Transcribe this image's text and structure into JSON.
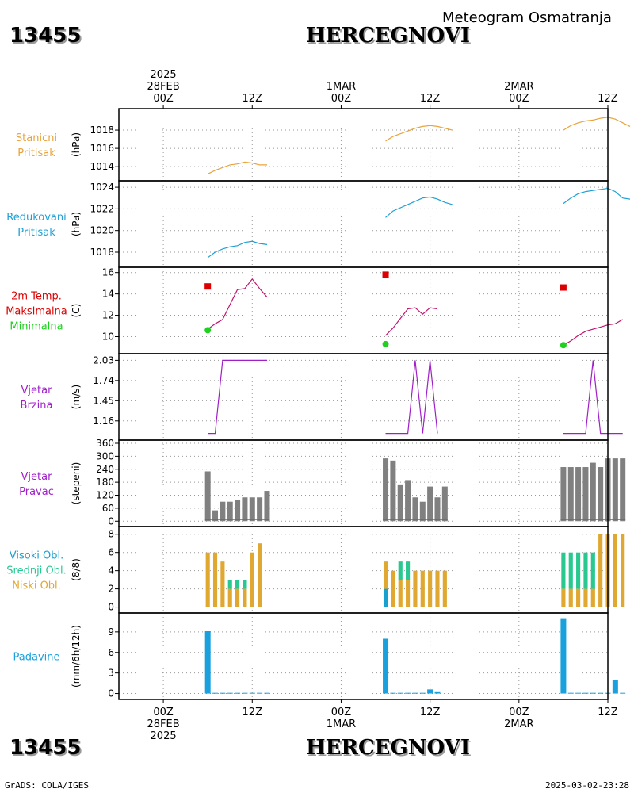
{
  "header": {
    "station_id": "13455",
    "station_name": "HERCEGNOVI",
    "meteogram_title": "Meteogram Osmatranja"
  },
  "footer": {
    "credit": "GrADS: COLA/IGES",
    "timestamp": "2025-03-02-23:28"
  },
  "time_axis": {
    "range_hours": [
      -6,
      60
    ],
    "top_labels": [
      {
        "hour": 0,
        "lines": [
          "2025",
          "28FEB",
          "00Z"
        ]
      },
      {
        "hour": 12,
        "lines": [
          "12Z"
        ]
      },
      {
        "hour": 24,
        "lines": [
          "1MAR",
          "00Z"
        ]
      },
      {
        "hour": 36,
        "lines": [
          "12Z"
        ]
      },
      {
        "hour": 48,
        "lines": [
          "2MAR",
          "00Z"
        ]
      },
      {
        "hour": 60,
        "lines": [
          "12Z"
        ]
      }
    ],
    "bottom_labels": [
      {
        "hour": 0,
        "lines": [
          "00Z",
          "28FEB",
          "2025"
        ]
      },
      {
        "hour": 12,
        "lines": [
          "12Z"
        ]
      },
      {
        "hour": 24,
        "lines": [
          "00Z",
          "1MAR"
        ]
      },
      {
        "hour": 36,
        "lines": [
          "12Z"
        ]
      },
      {
        "hour": 48,
        "lines": [
          "00Z",
          "2MAR"
        ]
      },
      {
        "hour": 60,
        "lines": [
          "12Z"
        ]
      }
    ]
  },
  "colors": {
    "pressure": "#e8a33a",
    "reduced": "#1ea0d6",
    "tmax": "#dc0000",
    "tmin": "#20d020",
    "temp_line": "#c0146e",
    "wind": "#a020c8",
    "direction_bar": "#808080",
    "direction_baseline": "#c84040",
    "cloud_high": "#18a0d0",
    "cloud_mid": "#28c890",
    "cloud_low": "#e0a830",
    "precip": "#1aa0dc"
  },
  "chart_data": [
    {
      "type": "line",
      "name_lines": [
        "Stanicni",
        "Pritisak"
      ],
      "ylabel": "(hPa)",
      "ylim": [
        1012.8,
        1020.0
      ],
      "yticks": [
        "1014",
        "1016",
        "1018"
      ],
      "series": [
        {
          "segments": [
            [
              [
                6,
                1013.2
              ],
              [
                7,
                1013.6
              ],
              [
                8,
                1013.9
              ],
              [
                9,
                1014.2
              ],
              [
                10,
                1014.3
              ],
              [
                11,
                1014.5
              ],
              [
                12,
                1014.4
              ],
              [
                13,
                1014.2
              ],
              [
                14,
                1014.2
              ]
            ],
            [
              [
                30,
                1016.8
              ],
              [
                31,
                1017.3
              ],
              [
                32,
                1017.6
              ],
              [
                33,
                1017.9
              ],
              [
                34,
                1018.2
              ],
              [
                35,
                1018.4
              ],
              [
                36,
                1018.5
              ],
              [
                37,
                1018.4
              ],
              [
                38,
                1018.2
              ],
              [
                39,
                1018.0
              ]
            ],
            [
              [
                54,
                1018.0
              ],
              [
                55,
                1018.5
              ],
              [
                56,
                1018.8
              ],
              [
                57,
                1019.0
              ],
              [
                58,
                1019.1
              ],
              [
                59,
                1019.3
              ],
              [
                60,
                1019.4
              ],
              [
                61,
                1019.2
              ],
              [
                62,
                1018.8
              ],
              [
                63,
                1018.4
              ]
            ]
          ]
        }
      ]
    },
    {
      "type": "line",
      "name_lines": [
        "Redukovani",
        "Pritisak"
      ],
      "ylabel": "(hPa)",
      "ylim": [
        1016.9,
        1024.3
      ],
      "yticks": [
        "1018",
        "1020",
        "1022",
        "1024"
      ],
      "series": [
        {
          "segments": [
            [
              [
                6,
                1017.5
              ],
              [
                7,
                1018.0
              ],
              [
                8,
                1018.3
              ],
              [
                9,
                1018.5
              ],
              [
                10,
                1018.6
              ],
              [
                11,
                1018.9
              ],
              [
                12,
                1019.0
              ],
              [
                13,
                1018.8
              ],
              [
                14,
                1018.7
              ]
            ],
            [
              [
                30,
                1021.2
              ],
              [
                31,
                1021.8
              ],
              [
                32,
                1022.1
              ],
              [
                33,
                1022.4
              ],
              [
                34,
                1022.7
              ],
              [
                35,
                1023.0
              ],
              [
                36,
                1023.1
              ],
              [
                37,
                1022.9
              ],
              [
                38,
                1022.6
              ],
              [
                39,
                1022.4
              ]
            ],
            [
              [
                54,
                1022.5
              ],
              [
                55,
                1023.0
              ],
              [
                56,
                1023.4
              ],
              [
                57,
                1023.6
              ],
              [
                58,
                1023.7
              ],
              [
                59,
                1023.8
              ],
              [
                60,
                1023.9
              ],
              [
                61,
                1023.6
              ],
              [
                62,
                1023.0
              ],
              [
                63,
                1022.9
              ]
            ]
          ]
        }
      ]
    },
    {
      "type": "line",
      "name_lines": [
        "2m Temp.",
        "Maksimalna",
        "Minimalna"
      ],
      "ylabel": "(C)",
      "ylim": [
        8.7,
        16.2
      ],
      "yticks": [
        "10",
        "12",
        "14",
        "16"
      ],
      "series": [
        {
          "segments": [
            [
              [
                6,
                10.7
              ],
              [
                7,
                11.2
              ],
              [
                8,
                11.6
              ],
              [
                9,
                13.0
              ],
              [
                10,
                14.4
              ],
              [
                11,
                14.5
              ],
              [
                12,
                15.4
              ],
              [
                13,
                14.5
              ],
              [
                14,
                13.7
              ]
            ],
            [
              [
                30,
                10.1
              ],
              [
                31,
                10.8
              ],
              [
                32,
                11.7
              ],
              [
                33,
                12.6
              ],
              [
                34,
                12.7
              ],
              [
                35,
                12.1
              ],
              [
                36,
                12.7
              ],
              [
                37,
                12.6
              ]
            ],
            [
              [
                54,
                9.2
              ],
              [
                55,
                9.6
              ],
              [
                56,
                10.1
              ],
              [
                57,
                10.5
              ],
              [
                58,
                10.7
              ],
              [
                59,
                10.9
              ],
              [
                60,
                11.1
              ],
              [
                61,
                11.2
              ],
              [
                62,
                11.6
              ]
            ]
          ]
        }
      ],
      "maxima": [
        [
          6,
          14.7
        ],
        [
          30,
          15.8
        ],
        [
          54,
          14.6
        ]
      ],
      "minima": [
        [
          6,
          10.6
        ],
        [
          30,
          9.3
        ],
        [
          54,
          9.2
        ]
      ]
    },
    {
      "type": "line",
      "name_lines": [
        "Vjetar",
        "Brzina"
      ],
      "ylabel": "(m/s)",
      "ylim": [
        0.93,
        2.08
      ],
      "yticks": [
        "1.16",
        "1.45",
        "1.74",
        "2.03"
      ],
      "series": [
        {
          "segments": [
            [
              [
                6,
                0.98
              ],
              [
                7,
                0.98
              ],
              [
                8,
                2.03
              ],
              [
                9,
                2.03
              ],
              [
                10,
                2.03
              ],
              [
                11,
                2.03
              ],
              [
                12,
                2.03
              ],
              [
                13,
                2.03
              ],
              [
                14,
                2.03
              ]
            ],
            [
              [
                30,
                0.98
              ],
              [
                31,
                0.98
              ],
              [
                32,
                0.98
              ],
              [
                33,
                0.98
              ],
              [
                34,
                2.03
              ],
              [
                35,
                0.98
              ],
              [
                36,
                2.03
              ],
              [
                37,
                0.98
              ]
            ],
            [
              [
                54,
                0.98
              ],
              [
                55,
                0.98
              ],
              [
                56,
                0.98
              ],
              [
                57,
                0.98
              ],
              [
                58,
                2.03
              ],
              [
                59,
                0.98
              ],
              [
                60,
                0.98
              ],
              [
                61,
                0.98
              ],
              [
                62,
                0.98
              ]
            ]
          ]
        }
      ]
    },
    {
      "type": "bar",
      "name_lines": [
        "Vjetar",
        "Pravac"
      ],
      "ylabel": "(stepeni)",
      "ylim": [
        -10,
        360
      ],
      "yticks": [
        "0",
        "60",
        "120",
        "180",
        "240",
        "300",
        "360"
      ],
      "bars": [
        [
          6,
          230
        ],
        [
          7,
          50
        ],
        [
          8,
          90
        ],
        [
          9,
          90
        ],
        [
          10,
          100
        ],
        [
          11,
          110
        ],
        [
          12,
          110
        ],
        [
          13,
          110
        ],
        [
          14,
          140
        ],
        [
          30,
          290
        ],
        [
          31,
          280
        ],
        [
          32,
          170
        ],
        [
          33,
          190
        ],
        [
          34,
          110
        ],
        [
          35,
          90
        ],
        [
          36,
          160
        ],
        [
          37,
          110
        ],
        [
          38,
          160
        ],
        [
          54,
          250
        ],
        [
          55,
          250
        ],
        [
          56,
          250
        ],
        [
          57,
          250
        ],
        [
          58,
          270
        ],
        [
          59,
          250
        ],
        [
          60,
          290
        ],
        [
          61,
          290
        ],
        [
          62,
          290
        ]
      ]
    },
    {
      "type": "bar",
      "name_lines": [
        "Visoki Obl.",
        "Srednji Obl.",
        "Niski Obl."
      ],
      "ylabel": "(8/8)",
      "ylim": [
        -0.3,
        8.5
      ],
      "yticks": [
        "0",
        "2",
        "4",
        "6",
        "8"
      ],
      "stacks": [
        [
          6,
          0,
          0,
          6
        ],
        [
          7,
          0,
          0,
          6
        ],
        [
          8,
          0,
          0,
          5
        ],
        [
          9,
          0,
          3,
          2
        ],
        [
          10,
          0,
          3,
          2
        ],
        [
          11,
          0,
          3,
          2
        ],
        [
          12,
          0,
          0,
          6
        ],
        [
          13,
          0,
          0,
          7
        ],
        [
          30,
          2,
          0,
          5
        ],
        [
          31,
          0,
          0,
          4
        ],
        [
          32,
          0,
          5,
          3
        ],
        [
          33,
          0,
          5,
          3
        ],
        [
          34,
          0,
          4,
          4
        ],
        [
          35,
          0,
          4,
          4
        ],
        [
          36,
          0,
          4,
          4
        ],
        [
          37,
          0,
          4,
          4
        ],
        [
          38,
          0,
          4,
          4
        ],
        [
          54,
          0,
          6,
          2
        ],
        [
          55,
          0,
          6,
          2
        ],
        [
          56,
          0,
          6,
          2
        ],
        [
          57,
          0,
          6,
          2
        ],
        [
          58,
          0,
          6,
          2
        ],
        [
          59,
          0,
          0,
          8
        ],
        [
          60,
          0,
          0,
          8
        ],
        [
          61,
          0,
          0,
          8
        ],
        [
          62,
          0,
          0,
          8
        ]
      ]
    },
    {
      "type": "bar",
      "name_lines": [
        "Padavine"
      ],
      "ylabel": "(mm/6h/12h)",
      "ylim": [
        -0.4,
        11.3
      ],
      "yticks": [
        "0",
        "3",
        "6",
        "9"
      ],
      "bars": [
        [
          6,
          9.1
        ],
        [
          7,
          0.1
        ],
        [
          8,
          0.1
        ],
        [
          9,
          0.1
        ],
        [
          10,
          0.1
        ],
        [
          11,
          0.1
        ],
        [
          12,
          0.1
        ],
        [
          13,
          0.1
        ],
        [
          14,
          0.1
        ],
        [
          30,
          8.0
        ],
        [
          31,
          0.1
        ],
        [
          32,
          0.1
        ],
        [
          33,
          0.1
        ],
        [
          34,
          0.1
        ],
        [
          35,
          0.1
        ],
        [
          36,
          0.6
        ],
        [
          37,
          0.2
        ],
        [
          54,
          11.0
        ],
        [
          55,
          0.1
        ],
        [
          56,
          0.1
        ],
        [
          57,
          0.1
        ],
        [
          58,
          0.1
        ],
        [
          59,
          0.1
        ],
        [
          60,
          0.1
        ],
        [
          61,
          2.0
        ],
        [
          62,
          0.1
        ]
      ]
    }
  ]
}
